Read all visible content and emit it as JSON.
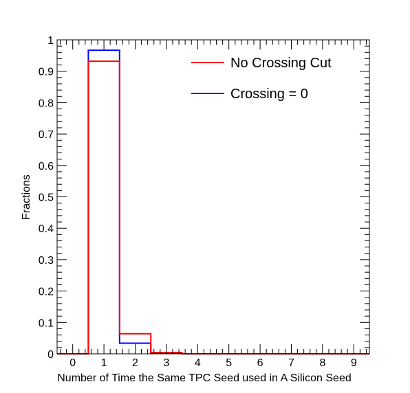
{
  "chart_data": {
    "type": "line",
    "style": "step-histogram",
    "title": "",
    "xlabel": "Number of Time the Same TPC Seed used in A Silicon Seed",
    "ylabel": "Fractions",
    "xlim": [
      -0.5,
      9.5
    ],
    "ylim": [
      0,
      1
    ],
    "xticks": [
      "0",
      "1",
      "2",
      "3",
      "4",
      "5",
      "6",
      "7",
      "8",
      "9"
    ],
    "yticks": [
      "0",
      "0.1",
      "0.2",
      "0.3",
      "0.4",
      "0.5",
      "0.6",
      "0.7",
      "0.8",
      "0.9",
      "1"
    ],
    "grid": false,
    "legend_position": "top-right",
    "series": [
      {
        "name": "No Crossing Cut",
        "color": "#ff0000",
        "x": [
          0,
          1,
          2,
          3,
          4,
          5,
          6,
          7,
          8,
          9
        ],
        "values": [
          0,
          0.932,
          0.064,
          0.004,
          0,
          0,
          0,
          0,
          0,
          0
        ]
      },
      {
        "name": "Crossing = 0",
        "color": "#0000ff",
        "x": [
          0,
          1,
          2,
          3,
          4,
          5,
          6,
          7,
          8,
          9
        ],
        "values": [
          0,
          0.967,
          0.034,
          0.001,
          0,
          0,
          0,
          0,
          0,
          0
        ]
      }
    ]
  }
}
